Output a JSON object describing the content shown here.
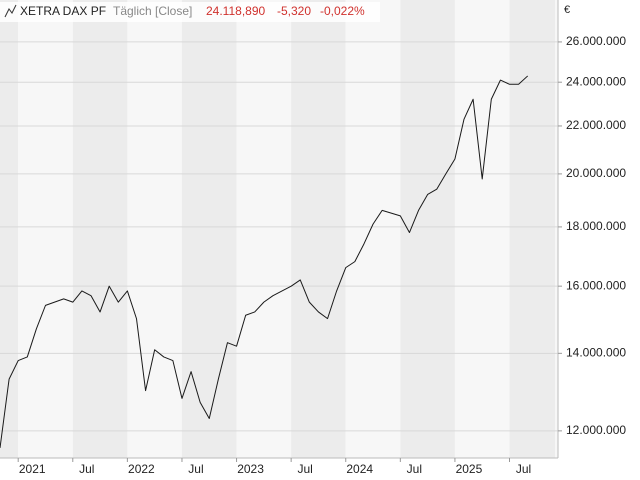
{
  "chart_data": {
    "type": "line",
    "title": "XETRA DAX PF",
    "subtitle": "Täglich [Close]",
    "annotations": [
      "24.118,890",
      "-5,320",
      "-0,022%"
    ],
    "y_label": "€",
    "log_scale": true,
    "grid": true,
    "color": "#1a1a1a",
    "x": [
      "2020-11",
      "2020-12",
      "2021-01",
      "2021-02",
      "2021-03",
      "2021-04",
      "2021-05",
      "2021-06",
      "2021-07",
      "2021-08",
      "2021-09",
      "2021-10",
      "2021-11",
      "2021-12",
      "2022-01",
      "2022-02",
      "2022-03",
      "2022-04",
      "2022-05",
      "2022-06",
      "2022-07",
      "2022-08",
      "2022-09",
      "2022-10",
      "2022-11",
      "2022-12",
      "2023-01",
      "2023-02",
      "2023-03",
      "2023-04",
      "2023-05",
      "2023-06",
      "2023-07",
      "2023-08",
      "2023-09",
      "2023-10",
      "2023-11",
      "2023-12",
      "2024-01",
      "2024-02",
      "2024-03",
      "2024-04",
      "2024-05",
      "2024-06",
      "2024-07",
      "2024-08",
      "2024-09",
      "2024-10",
      "2024-11",
      "2024-12",
      "2025-01",
      "2025-02",
      "2025-03",
      "2025-04",
      "2025-05",
      "2025-06",
      "2025-07",
      "2025-08",
      "2025-09"
    ],
    "values": [
      11600000,
      13300000,
      13800000,
      13900000,
      14700000,
      15400000,
      15500000,
      15600000,
      15500000,
      15850000,
      15700000,
      15200000,
      16000000,
      15500000,
      15850000,
      15000000,
      13000000,
      14100000,
      13900000,
      13800000,
      12800000,
      13500000,
      12700000,
      12300000,
      13300000,
      14300000,
      14200000,
      15100000,
      15200000,
      15500000,
      15700000,
      15850000,
      16000000,
      16200000,
      15500000,
      15200000,
      15000000,
      15850000,
      16600000,
      16800000,
      17400000,
      18100000,
      18600000,
      18500000,
      18400000,
      17800000,
      18600000,
      19200000,
      19400000,
      20000000,
      20600000,
      22300000,
      23200000,
      19800000,
      23200000,
      24100000,
      23900000,
      23900000,
      24300000
    ],
    "xlim": [
      "2020-11",
      "2025-12"
    ],
    "xticks": [
      {
        "value": "2021-01",
        "label": "2021"
      },
      {
        "value": "2021-07",
        "label": "Jul"
      },
      {
        "value": "2022-01",
        "label": "2022"
      },
      {
        "value": "2022-07",
        "label": "Jul"
      },
      {
        "value": "2023-01",
        "label": "2023"
      },
      {
        "value": "2023-07",
        "label": "Jul"
      },
      {
        "value": "2024-01",
        "label": "2024"
      },
      {
        "value": "2024-07",
        "label": "Jul"
      },
      {
        "value": "2025-01",
        "label": "2025"
      },
      {
        "value": "2025-07",
        "label": "Jul"
      }
    ],
    "ylim": [
      11370000,
      28260000
    ],
    "yticks": [
      {
        "value": 12000000,
        "label": "12.000.000"
      },
      {
        "value": 14000000,
        "label": "14.000.000"
      },
      {
        "value": 16000000,
        "label": "16.000.000"
      },
      {
        "value": 18000000,
        "label": "18.000.000"
      },
      {
        "value": 20000000,
        "label": "20.000.000"
      },
      {
        "value": 22000000,
        "label": "22.000.000"
      },
      {
        "value": 24000000,
        "label": "24.000.000"
      },
      {
        "value": 26000000,
        "label": "26.000.000"
      }
    ]
  }
}
